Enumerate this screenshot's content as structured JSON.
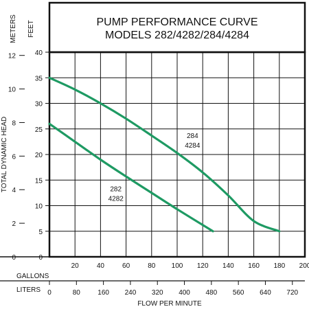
{
  "header": {
    "line1": "PUMP PERFORMANCE CURVE",
    "line2": "MODELS 282/4282/284/4284"
  },
  "unit_labels": {
    "meters": "METERS",
    "feet": "FEET",
    "gallons": "GALLONS",
    "liters": "LITERS"
  },
  "colors": {
    "curve": "#1e9a63",
    "grid": "#111111",
    "background": "#ffffff"
  },
  "chart_data": {
    "type": "line",
    "title": "PUMP PERFORMANCE CURVE MODELS 282/4282/284/4284",
    "xlabel": "FLOW PER MINUTE",
    "ylabel": "TOTAL DYNAMIC HEAD",
    "x_unit_primary": "GALLONS",
    "x_unit_secondary": "LITERS",
    "y_unit_primary": "FEET",
    "y_unit_secondary": "METERS",
    "xlim": [
      0,
      200
    ],
    "ylim": [
      0,
      40
    ],
    "x_ticks_gallons": [
      20,
      40,
      60,
      80,
      100,
      120,
      140,
      160,
      180,
      200
    ],
    "x_ticks_liters": [
      0,
      80,
      160,
      240,
      320,
      400,
      480,
      560,
      640,
      720
    ],
    "y_ticks_feet": [
      0,
      5,
      10,
      15,
      20,
      25,
      30,
      35,
      40
    ],
    "y_ticks_meters": [
      0,
      2,
      4,
      6,
      8,
      10,
      12
    ],
    "grid": true,
    "series": [
      {
        "name": "284 4284",
        "label_lines": [
          "284",
          "4284"
        ],
        "x": [
          0,
          20,
          40,
          60,
          80,
          100,
          120,
          140,
          160,
          180
        ],
        "y": [
          35,
          32.7,
          30,
          27,
          23.7,
          20.3,
          16.5,
          12,
          7,
          5
        ]
      },
      {
        "name": "282 4282",
        "label_lines": [
          "282",
          "4282"
        ],
        "x": [
          0,
          20,
          40,
          60,
          80,
          100,
          128
        ],
        "y": [
          26,
          22.5,
          19,
          15.7,
          12.5,
          9.3,
          5
        ]
      }
    ]
  }
}
